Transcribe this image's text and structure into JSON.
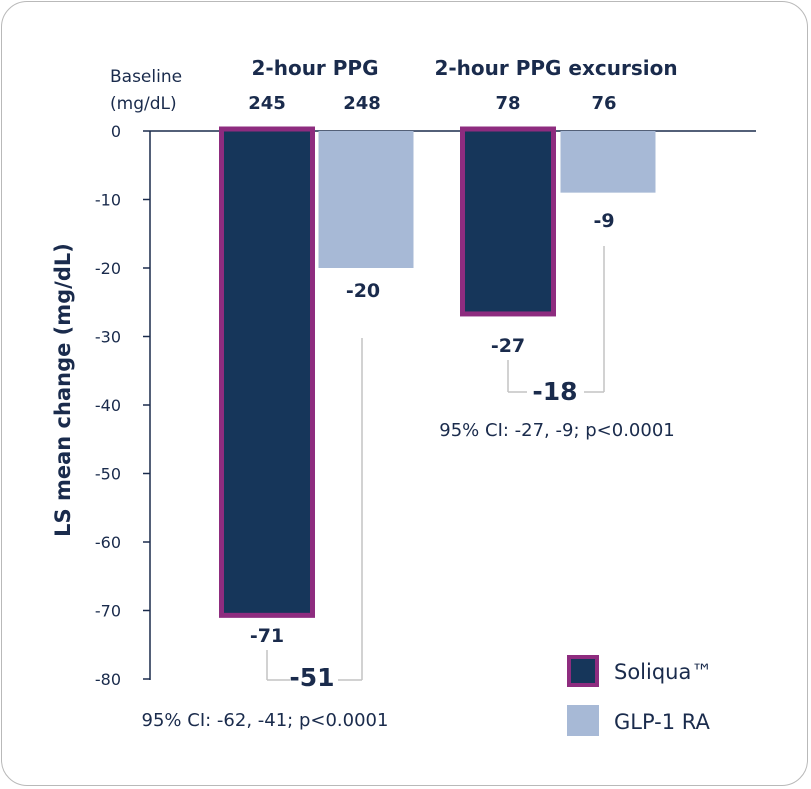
{
  "chart_data": {
    "type": "bar",
    "ylabel": "LS mean change (mg/dL)",
    "ylim": [
      -80,
      0
    ],
    "yticks": [
      0,
      -10,
      -20,
      -30,
      -40,
      -50,
      -60,
      -70,
      -80
    ],
    "baseline_label_line1": "Baseline",
    "baseline_label_line2": "(mg/dL)",
    "groups": [
      {
        "name": "2-hour PPG",
        "baselines": [
          "245",
          "248"
        ],
        "values": [
          -71,
          -20
        ],
        "value_labels": [
          "-71",
          "-20"
        ],
        "difference": "-51",
        "ci": "95% CI: -62, -41; p<0.0001"
      },
      {
        "name": "2-hour PPG excursion",
        "baselines": [
          "78",
          "76"
        ],
        "values": [
          -27,
          -9
        ],
        "value_labels": [
          "-27",
          "-9"
        ],
        "difference": "-18",
        "ci": "95% CI: -27, -9; p<0.0001"
      }
    ],
    "series": [
      {
        "name": "Soliqua™",
        "fill": "#16365a",
        "stroke": "#8e2c7f"
      },
      {
        "name": "GLP-1 RA",
        "fill": "#a7b9d6"
      }
    ],
    "legend_position": "bottom-right"
  }
}
